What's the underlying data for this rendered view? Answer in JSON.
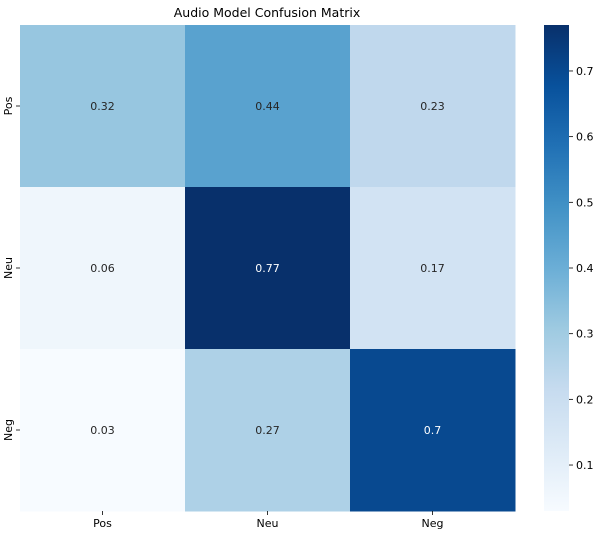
{
  "chart_data": {
    "type": "heatmap",
    "title": "Audio Model Confusion Matrix",
    "xlabel": "",
    "ylabel": "",
    "x_categories": [
      "Pos",
      "Neu",
      "Neg"
    ],
    "y_categories": [
      "Pos",
      "Neu",
      "Neg"
    ],
    "values": [
      [
        0.32,
        0.44,
        0.23
      ],
      [
        0.06,
        0.77,
        0.17
      ],
      [
        0.03,
        0.27,
        0.7
      ]
    ],
    "colormap": "Blues",
    "vmin": 0.03,
    "vmax": 0.77,
    "colorbar": {
      "ticks": [
        0.1,
        0.2,
        0.3,
        0.4,
        0.5,
        0.6,
        0.7
      ],
      "tick_labels": [
        "0.1",
        "0.2",
        "0.3",
        "0.4",
        "0.5",
        "0.6",
        "0.7"
      ]
    },
    "grid": false,
    "legend": "right"
  }
}
